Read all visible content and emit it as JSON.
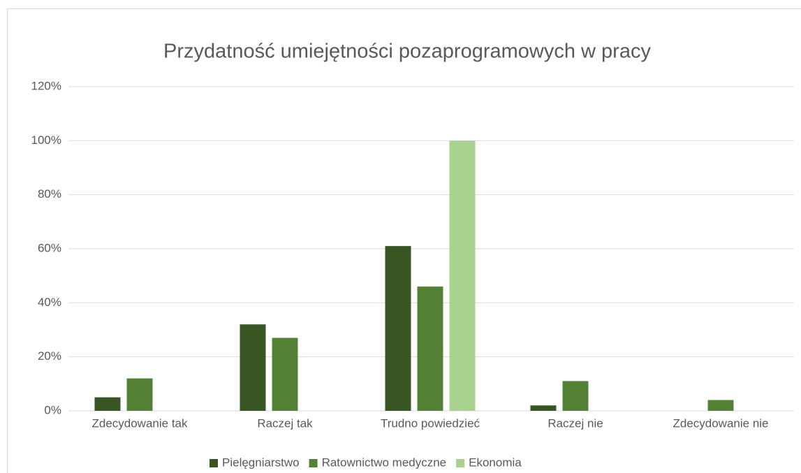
{
  "chart_data": {
    "type": "bar",
    "title": "Przydatność umiejętności pozaprogramowych w pracy",
    "categories": [
      "Zdecydowanie tak",
      "Raczej tak",
      "Trudno powiedzieć",
      "Raczej nie",
      "Zdecydowanie nie"
    ],
    "series": [
      {
        "name": "Pielęgniarstwo",
        "color": "#375623",
        "values": [
          5,
          32,
          61,
          2,
          0
        ]
      },
      {
        "name": "Ratownictwo medyczne",
        "color": "#548235",
        "values": [
          12,
          27,
          46,
          11,
          4
        ]
      },
      {
        "name": "Ekonomia",
        "color": "#a9d18e",
        "values": [
          0,
          0,
          100,
          0,
          0
        ]
      }
    ],
    "ylim": [
      0,
      120
    ],
    "yticks": [
      {
        "value": 0,
        "label": "0%"
      },
      {
        "value": 20,
        "label": "20%"
      },
      {
        "value": 40,
        "label": "40%"
      },
      {
        "value": 60,
        "label": "60%"
      },
      {
        "value": 80,
        "label": "80%"
      },
      {
        "value": 100,
        "label": "100%"
      },
      {
        "value": 120,
        "label": "120%"
      }
    ],
    "grid": true,
    "legend": "bottom"
  }
}
